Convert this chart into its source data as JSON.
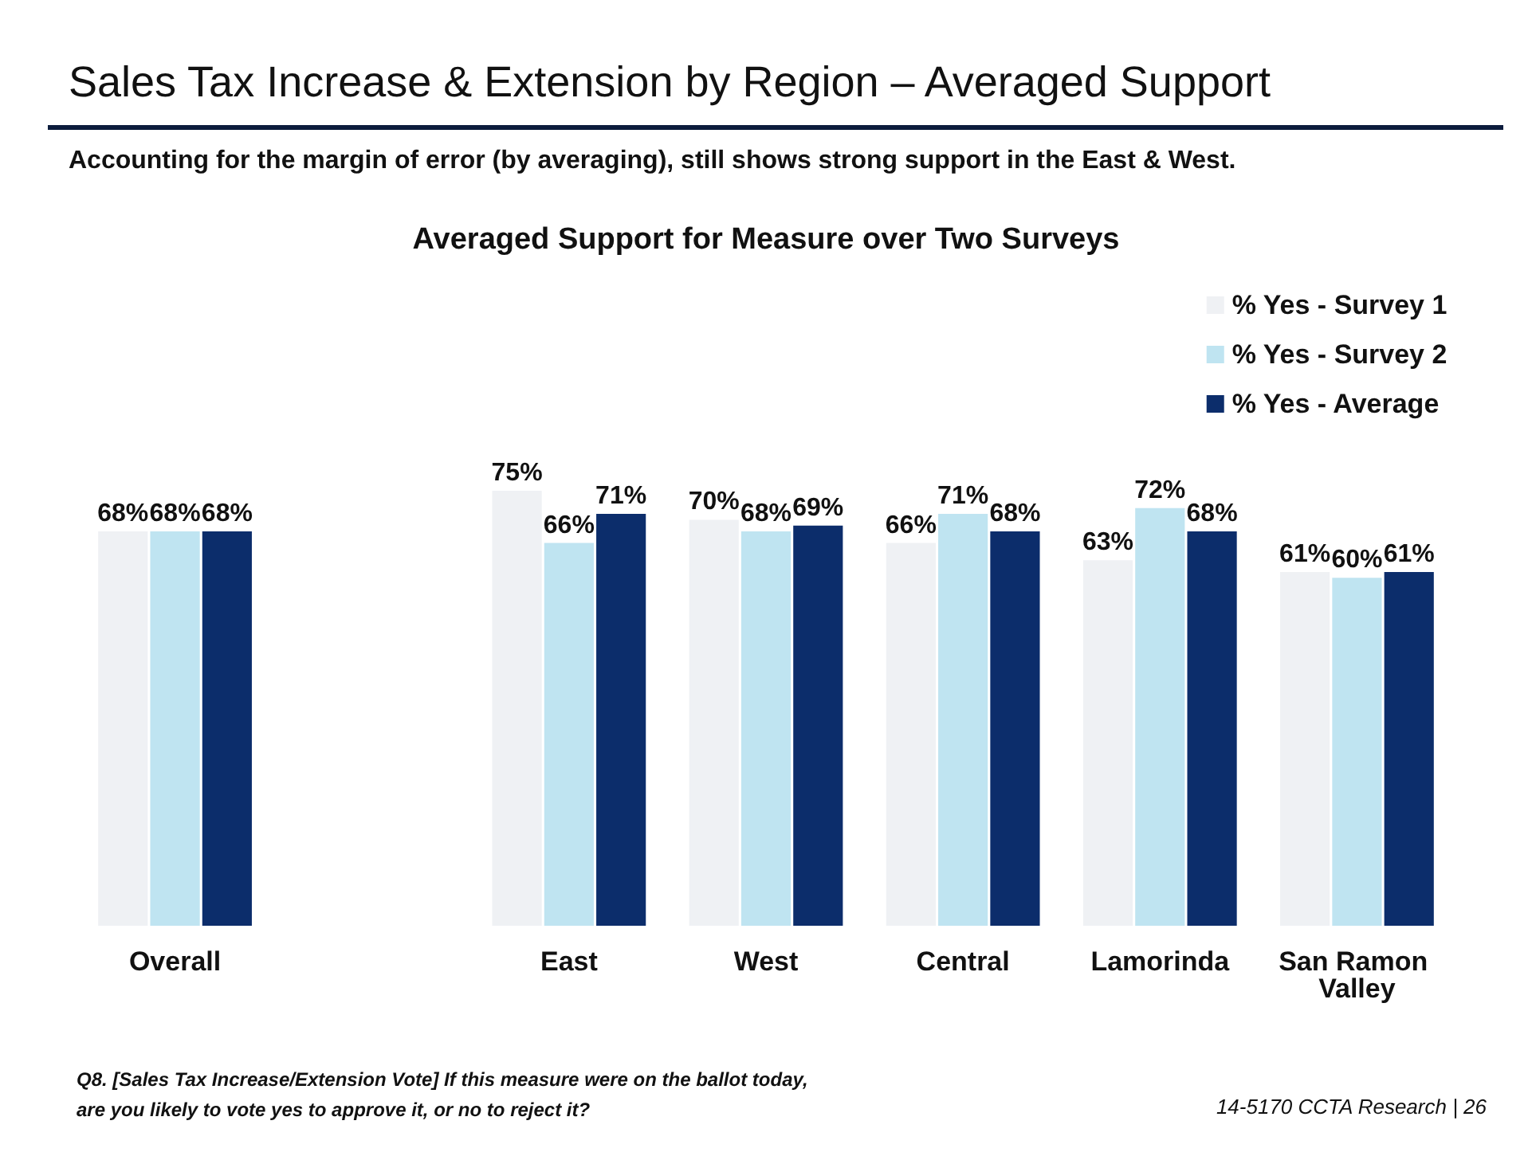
{
  "chart_data": {
    "type": "bar",
    "title": "Sales Tax Increase & Extension by Region – Averaged Support",
    "subtitle": "Accounting for the margin of error (by averaging), still shows strong support in the East & West.",
    "annotations": [
      "Averaged Support for Measure over Two Surveys",
      "Q8. [Sales Tax Increase/Extension Vote] If this measure were on the ballot today, are you likely to vote yes to approve it, or no to reject it?",
      "14-5170 CCTA Research | 26"
    ],
    "categories": [
      "Overall",
      null,
      "East",
      "West",
      "Central",
      "Lamorinda",
      "San Ramon Valley"
    ],
    "series": [
      {
        "name": "% Yes - Survey 1",
        "color": "#eff1f4",
        "values": [
          68,
          null,
          75,
          70,
          66,
          63,
          61
        ],
        "value_labels": [
          "68%",
          null,
          "75%",
          "70%",
          "66%",
          "63%",
          "61%"
        ]
      },
      {
        "name": "% Yes - Survey 2",
        "color": "#bfe4f1",
        "values": [
          68,
          null,
          66,
          68,
          71,
          72,
          60
        ],
        "value_labels": [
          "68%",
          null,
          "66%",
          "68%",
          "71%",
          "72%",
          "60%"
        ]
      },
      {
        "name": "% Yes - Average",
        "color": "#0c2d6b",
        "values": [
          68,
          null,
          71,
          69,
          68,
          68,
          61
        ],
        "value_labels": [
          "68%",
          null,
          "71%",
          "69%",
          "68%",
          "68%",
          "61%"
        ]
      }
    ],
    "legend": "top right",
    "grid": false
  }
}
